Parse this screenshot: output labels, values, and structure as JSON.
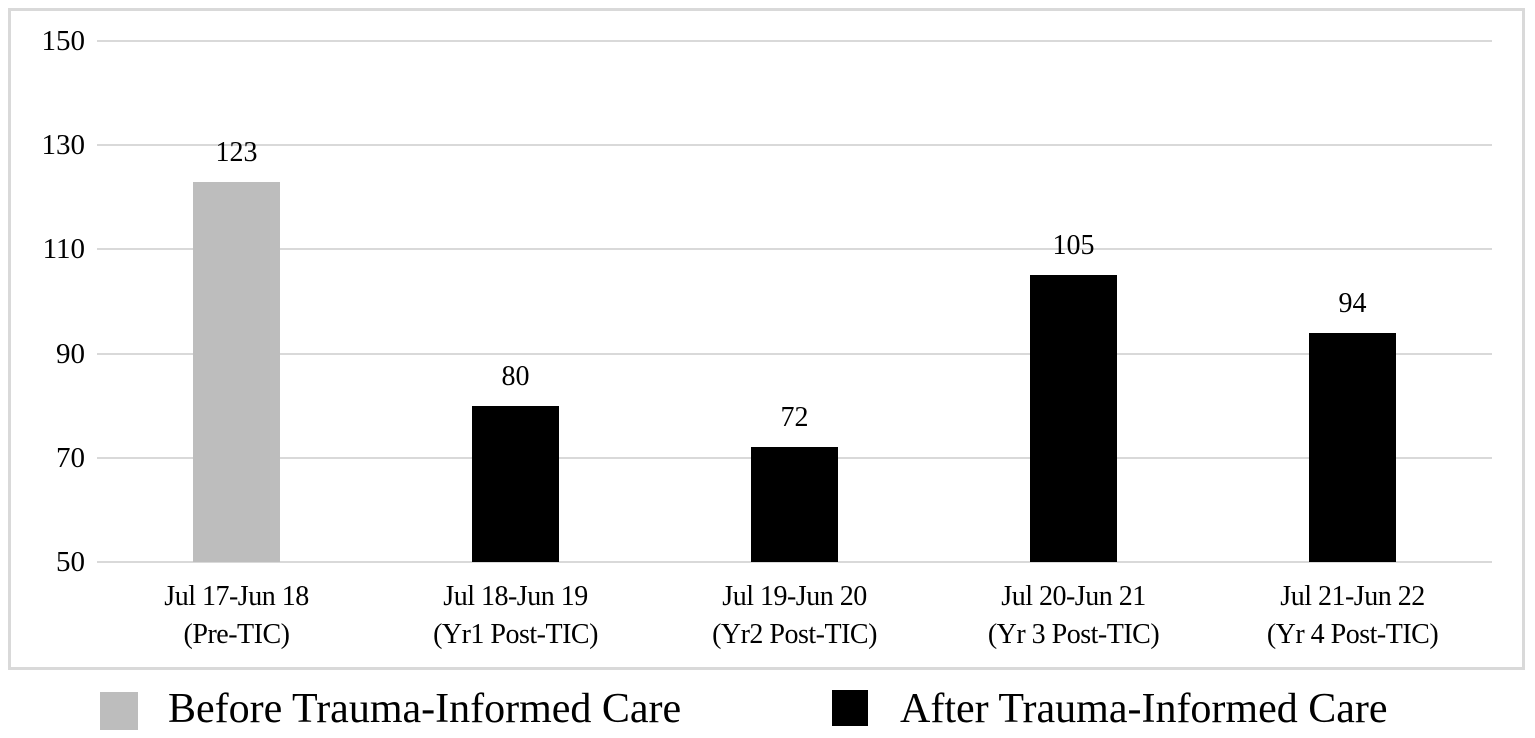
{
  "chart_data": {
    "type": "bar",
    "title": "",
    "xlabel": "",
    "ylabel": "",
    "categories": [
      "Jul 17-Jun 18 (Pre-TIC)",
      "Jul 18-Jun 19 (Yr1 Post-TIC)",
      "Jul 19-Jun 20 (Yr2 Post-TIC)",
      "Jul 20-Jun 21 (Yr 3 Post-TIC)",
      "Jul 21-Jun 22 (Yr 4 Post-TIC)"
    ],
    "values": [
      123,
      80,
      72,
      105,
      94
    ],
    "bars": [
      {
        "value": 123,
        "data_label": "123",
        "period": "Jul 17-Jun 18",
        "phase": "(Pre-TIC)",
        "series": "Before Trauma-Informed Care",
        "color": "#BDBDBD"
      },
      {
        "value": 80,
        "data_label": "80",
        "period": "Jul 18-Jun 19",
        "phase": "(Yr1 Post-TIC)",
        "series": "After Trauma-Informed Care",
        "color": "#000000"
      },
      {
        "value": 72,
        "data_label": "72",
        "period": "Jul 19-Jun 20",
        "phase": "(Yr2 Post-TIC)",
        "series": "After Trauma-Informed Care",
        "color": "#000000"
      },
      {
        "value": 105,
        "data_label": "105",
        "period": "Jul 20-Jun 21",
        "phase": "(Yr 3 Post-TIC)",
        "series": "After Trauma-Informed Care",
        "color": "#000000"
      },
      {
        "value": 94,
        "data_label": "94",
        "period": "Jul 21-Jun 22",
        "phase": "(Yr 4 Post-TIC)",
        "series": "After Trauma-Informed Care",
        "color": "#000000"
      }
    ],
    "y_axis": {
      "ticks": [
        150,
        130,
        110,
        90,
        70,
        50
      ],
      "min": 50,
      "max": 150
    },
    "legend": [
      {
        "label": "Before Trauma-Informed Care",
        "color": "#BDBDBD"
      },
      {
        "label": "After Trauma-Informed Care",
        "color": "#000000"
      }
    ],
    "legend_position": "bottom",
    "grid": true,
    "colors": {
      "grid_line": "#D9D9D9",
      "frame_border": "#D9D9D9",
      "text": "#000000",
      "background": "#FFFFFF"
    }
  }
}
